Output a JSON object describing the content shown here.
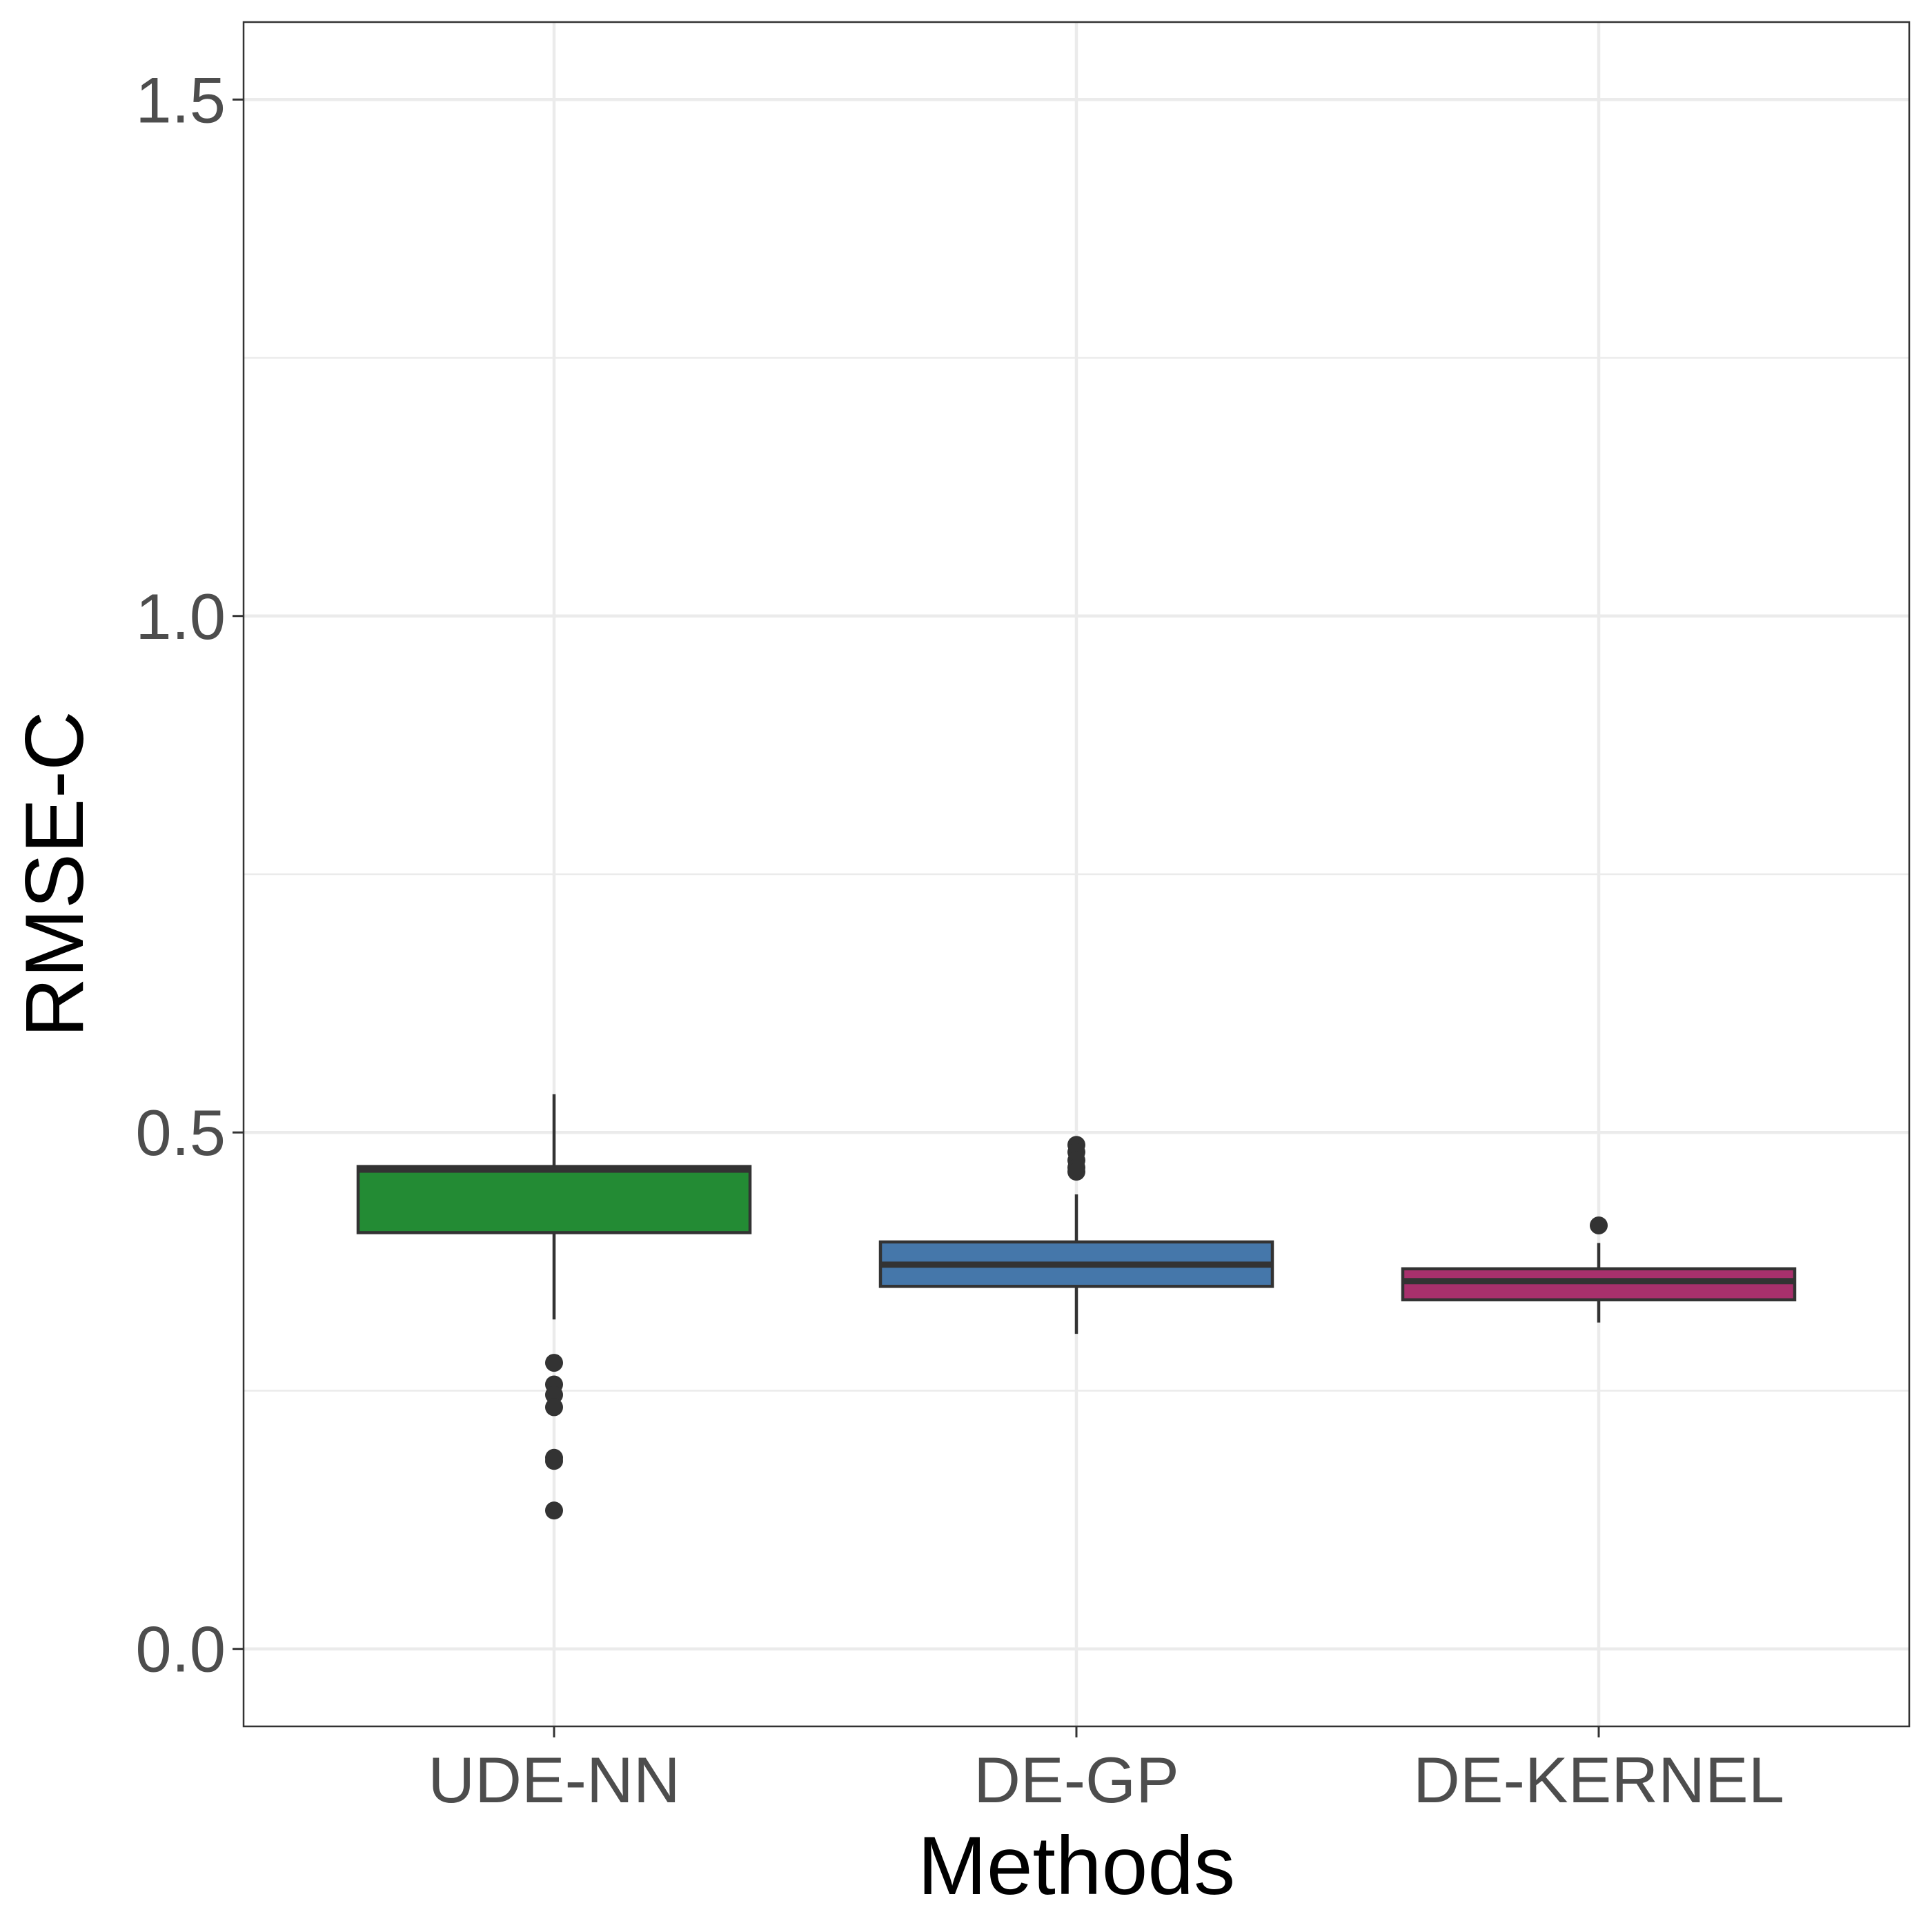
{
  "chart_data": {
    "type": "box",
    "title": "",
    "xlabel": "Methods",
    "ylabel": "RMSE-C",
    "ylim": [
      -0.075,
      1.575
    ],
    "yticks": [
      "0.0",
      "0.5",
      "1.0",
      "1.5"
    ],
    "ytick_values": [
      0.0,
      0.5,
      1.0,
      1.5
    ],
    "y_minor_values": [
      0.25,
      0.75,
      1.25
    ],
    "grid": true,
    "legend": "none",
    "categories": [
      "UDE-NN",
      "DE-GP",
      "DE-KERNEL"
    ],
    "series": [
      {
        "category": "UDE-NN",
        "color": "#238b34",
        "whisker_low": 0.319,
        "q1": 0.403,
        "median": 0.464,
        "q3": 0.467,
        "whisker_high": 0.537,
        "outliers": [
          0.277,
          0.256,
          0.246,
          0.234,
          0.185,
          0.182,
          0.134
        ]
      },
      {
        "category": "DE-GP",
        "color": "#4577aa",
        "whisker_low": 0.305,
        "q1": 0.351,
        "median": 0.372,
        "q3": 0.394,
        "whisker_high": 0.44,
        "outliers": [
          0.488,
          0.481,
          0.473,
          0.466,
          0.462
        ]
      },
      {
        "category": "DE-KERNEL",
        "color": "#a8306c",
        "whisker_low": 0.316,
        "q1": 0.338,
        "median": 0.356,
        "q3": 0.368,
        "whisker_high": 0.393,
        "outliers": [
          0.41
        ]
      }
    ]
  }
}
